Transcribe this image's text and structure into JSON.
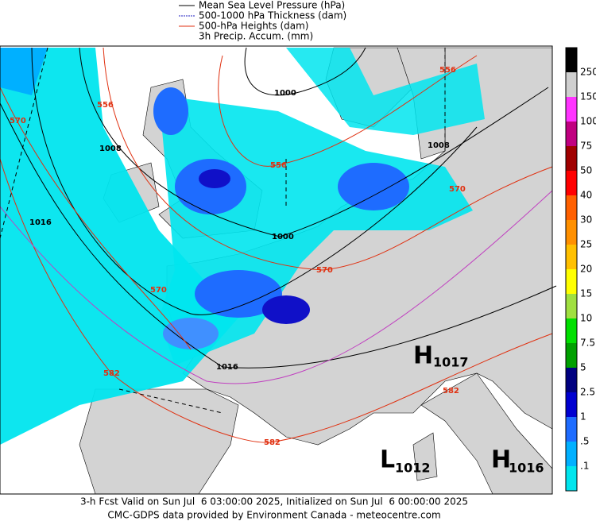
{
  "legend": [
    {
      "label": "Mean Sea Level Pressure (hPa)"
    },
    {
      "label": "500-1000 hPa Thickness (dam)"
    },
    {
      "label": "500-hPa Heights (dam)"
    },
    {
      "label": "3h Precip. Accum. (mm)"
    }
  ],
  "colorbar": {
    "labels": [
      "250",
      "150",
      "100",
      "75",
      "50",
      "40",
      "30",
      "25",
      "20",
      "15",
      "10",
      "7.5",
      "5",
      "2.5",
      "1",
      ".5",
      ".1"
    ]
  },
  "contour_labels": [
    "1000",
    "1000",
    "1008",
    "1008",
    "1016",
    "1016",
    "556",
    "556",
    "556",
    "570",
    "570",
    "570",
    "570",
    "582",
    "582",
    "582"
  ],
  "pressure_centers": [
    {
      "letter": "H",
      "value": "1017"
    },
    {
      "letter": "L",
      "value": "1012"
    },
    {
      "letter": "H",
      "value": "1016"
    }
  ],
  "footer": {
    "line1": "3-h Fcst Valid on Sun Jul  6 03:00:00 2025, Initialized on Sun Jul  6 00:00:00 2025",
    "line2": "CMC-GDPS data provided by Environment Canada - meteocentre.com"
  }
}
